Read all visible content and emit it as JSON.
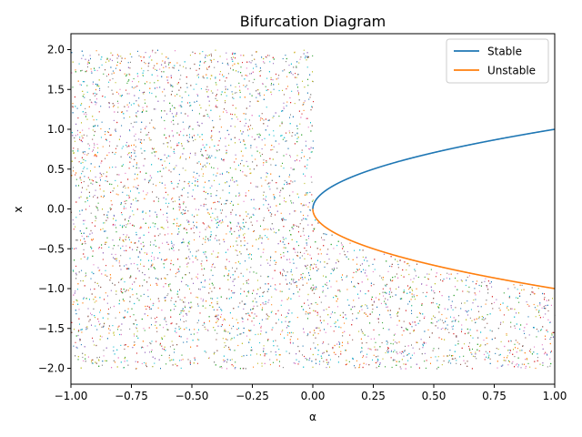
{
  "chart_data": {
    "type": "line",
    "title": "Bifurcation Diagram",
    "xlabel": "α",
    "ylabel": "x",
    "xlim": [
      -1.0,
      1.0
    ],
    "ylim": [
      -2.2,
      2.2
    ],
    "xticks": [
      -1.0,
      -0.75,
      -0.5,
      -0.25,
      0.0,
      0.25,
      0.5,
      0.75,
      1.0
    ],
    "xtick_labels": [
      "−1.00",
      "−0.75",
      "−0.50",
      "−0.25",
      "0.00",
      "0.25",
      "0.50",
      "0.75",
      "1.00"
    ],
    "yticks": [
      -2.0,
      -1.5,
      -1.0,
      -0.5,
      0.0,
      0.5,
      1.0,
      1.5,
      2.0
    ],
    "ytick_labels": [
      "−2.0",
      "−1.5",
      "−1.0",
      "−0.5",
      "0.0",
      "0.5",
      "1.0",
      "1.5",
      "2.0"
    ],
    "grid": false,
    "legend_position": "top-right",
    "series": [
      {
        "name": "Stable",
        "color": "#1f77b4",
        "equation": "x = sqrt(α)",
        "x_range": [
          0.0,
          1.0
        ]
      },
      {
        "name": "Unstable",
        "color": "#ff7f0e",
        "equation": "x = -sqrt(α)",
        "x_range": [
          0.0,
          1.0
        ]
      }
    ],
    "scatter_noise": {
      "description": "random trajectory points",
      "colors": [
        "#1f77b4",
        "#ff7f0e",
        "#2ca02c",
        "#d62728",
        "#9467bd",
        "#8c564b",
        "#e377c2",
        "#7f7f7f",
        "#bcbd22",
        "#17becf"
      ],
      "regions": [
        {
          "x_range": [
            -1.0,
            0.0
          ],
          "y_range": [
            -2.0,
            2.0
          ]
        },
        {
          "x_range": [
            0.0,
            1.0
          ],
          "y_range": [
            -2.0,
            -0.0
          ],
          "below_curve": true
        }
      ]
    }
  }
}
